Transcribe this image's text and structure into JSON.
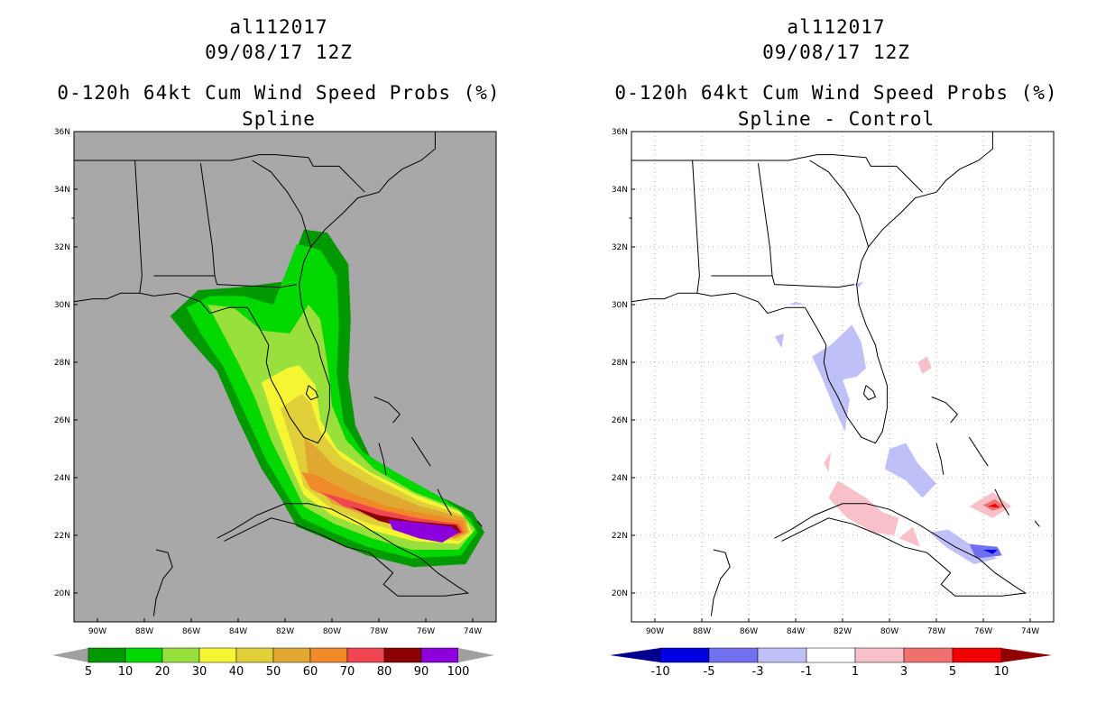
{
  "left": {
    "title1": "al112017",
    "title2": "09/08/17 12Z",
    "title3": "0-120h 64kt Cum Wind Speed Probs (%)",
    "title4": "Spline",
    "colorbar": {
      "labels": [
        "5",
        "10",
        "20",
        "30",
        "40",
        "50",
        "60",
        "70",
        "80",
        "90",
        "100"
      ],
      "colors": [
        "#009a00",
        "#00d800",
        "#99e03c",
        "#f5f534",
        "#e0cf38",
        "#e0a830",
        "#f08a28",
        "#f04650",
        "#8c0000",
        "#8c00dc"
      ],
      "end_color": "#a0a0a0"
    },
    "background": "#a8a8a8"
  },
  "right": {
    "title1": "al112017",
    "title2": "09/08/17 12Z",
    "title3": "0-120h 64kt Cum Wind Speed Probs (%)",
    "title4": "Spline - Control",
    "colorbar": {
      "labels": [
        "-10",
        "-5",
        "-3",
        "-1",
        "1",
        "3",
        "5",
        "10"
      ],
      "colors": [
        "#0000e0",
        "#7070f0",
        "#c0c0f8",
        "#ffffff",
        "#f8c0c8",
        "#f07070",
        "#f00000"
      ],
      "end_low": "#000090",
      "end_high": "#900000"
    }
  },
  "axes": {
    "lat_labels": [
      "36N",
      "34N",
      "32N",
      "30N",
      "28N",
      "26N",
      "24N",
      "22N",
      "20N"
    ],
    "lon_labels": [
      "90W",
      "88W",
      "86W",
      "84W",
      "82W",
      "80W",
      "78W",
      "76W",
      "74W"
    ]
  }
}
